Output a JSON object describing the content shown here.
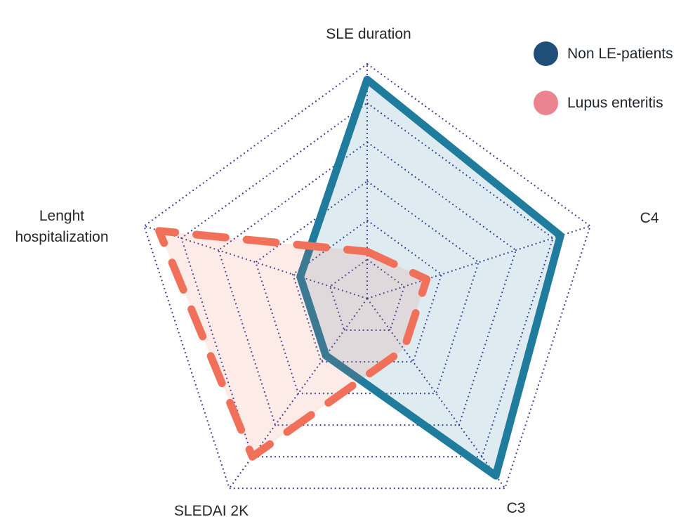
{
  "legend": {
    "items": [
      {
        "label": "Non LE-patients",
        "color": "#1F4E79"
      },
      {
        "label": "Lupus enteritis",
        "color": "#EC8490"
      }
    ]
  },
  "chart_data": {
    "type": "radar",
    "title": "",
    "categories": [
      "SLE duration",
      "C4",
      "C3",
      "SLEDAI 2K",
      "Lenght hospitalization"
    ],
    "scale": {
      "min": 0,
      "max": 6,
      "rings": 6,
      "tick_labels_visible": false
    },
    "series": [
      {
        "name": "Non LE-patients",
        "values": [
          5.6,
          5.2,
          5.6,
          1.8,
          1.8
        ],
        "stroke": "#1F7C9C",
        "fill": "rgba(31,124,156,0.15)",
        "line_style": "solid"
      },
      {
        "name": "Lupus enteritis",
        "values": [
          1.2,
          1.6,
          1.6,
          5.0,
          5.6
        ],
        "stroke": "#F0705A",
        "fill": "rgba(240,112,90,0.14)",
        "line_style": "dashed"
      }
    ],
    "grid": {
      "shape": "pentagon",
      "line_style": "dotted",
      "color": "#2E3393",
      "radial_axes": true
    },
    "axis_label_color": "#262626",
    "legend_position": "top-right"
  }
}
